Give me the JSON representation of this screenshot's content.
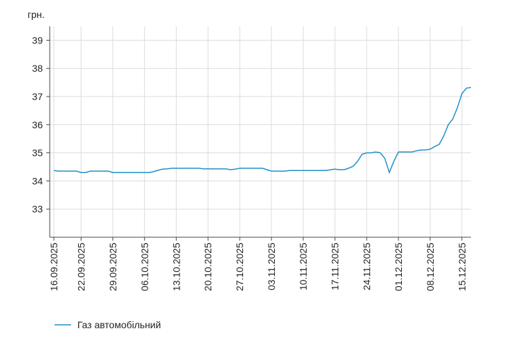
{
  "chart_data": {
    "type": "line",
    "y_label": "грн.",
    "categories": [
      "16.09.2025",
      null,
      null,
      null,
      null,
      null,
      "22.09.2025",
      null,
      null,
      null,
      null,
      null,
      null,
      "29.09.2025",
      null,
      null,
      null,
      null,
      null,
      null,
      "06.10.2025",
      null,
      null,
      null,
      null,
      null,
      null,
      "13.10.2025",
      null,
      null,
      null,
      null,
      null,
      null,
      "20.10.2025",
      null,
      null,
      null,
      null,
      null,
      null,
      "27.10.2025",
      null,
      null,
      null,
      null,
      null,
      null,
      "03.11.2025",
      null,
      null,
      null,
      null,
      null,
      null,
      "10.11.2025",
      null,
      null,
      null,
      null,
      null,
      null,
      "17.11.2025",
      null,
      null,
      null,
      null,
      null,
      null,
      "24.11.2025",
      null,
      null,
      null,
      null,
      null,
      null,
      "01.12.2025",
      null,
      null,
      null,
      null,
      null,
      null,
      "08.12.2025",
      null,
      null,
      null,
      null,
      null,
      null,
      "15.12.2025",
      null,
      null
    ],
    "series": [
      {
        "name": "Газ автомобільний",
        "color": "#1f8fc6",
        "values": [
          34.37,
          34.35,
          34.35,
          34.35,
          34.35,
          34.35,
          34.3,
          34.3,
          34.35,
          34.35,
          34.35,
          34.35,
          34.35,
          34.3,
          34.3,
          34.3,
          34.3,
          34.3,
          34.3,
          34.3,
          34.3,
          34.3,
          34.33,
          34.38,
          34.42,
          34.43,
          34.45,
          34.45,
          34.45,
          34.45,
          34.45,
          34.45,
          34.45,
          34.43,
          34.43,
          34.43,
          34.43,
          34.43,
          34.43,
          34.4,
          34.42,
          34.45,
          34.45,
          34.45,
          34.45,
          34.45,
          34.45,
          34.4,
          34.35,
          34.35,
          34.35,
          34.35,
          34.37,
          34.37,
          34.37,
          34.37,
          34.37,
          34.37,
          34.37,
          34.37,
          34.37,
          34.4,
          34.42,
          34.4,
          34.4,
          34.45,
          34.52,
          34.7,
          34.95,
          35.0,
          35.0,
          35.03,
          35.0,
          34.8,
          34.3,
          34.7,
          35.03,
          35.03,
          35.03,
          35.03,
          35.07,
          35.1,
          35.1,
          35.13,
          35.22,
          35.3,
          35.6,
          36.0,
          36.2,
          36.6,
          37.1,
          37.3,
          37.32
        ]
      }
    ],
    "ylim": [
      32,
      39.5
    ],
    "yticks": [
      33,
      34,
      35,
      36,
      37,
      38,
      39
    ],
    "grid": true,
    "legend": "bottom-left"
  }
}
